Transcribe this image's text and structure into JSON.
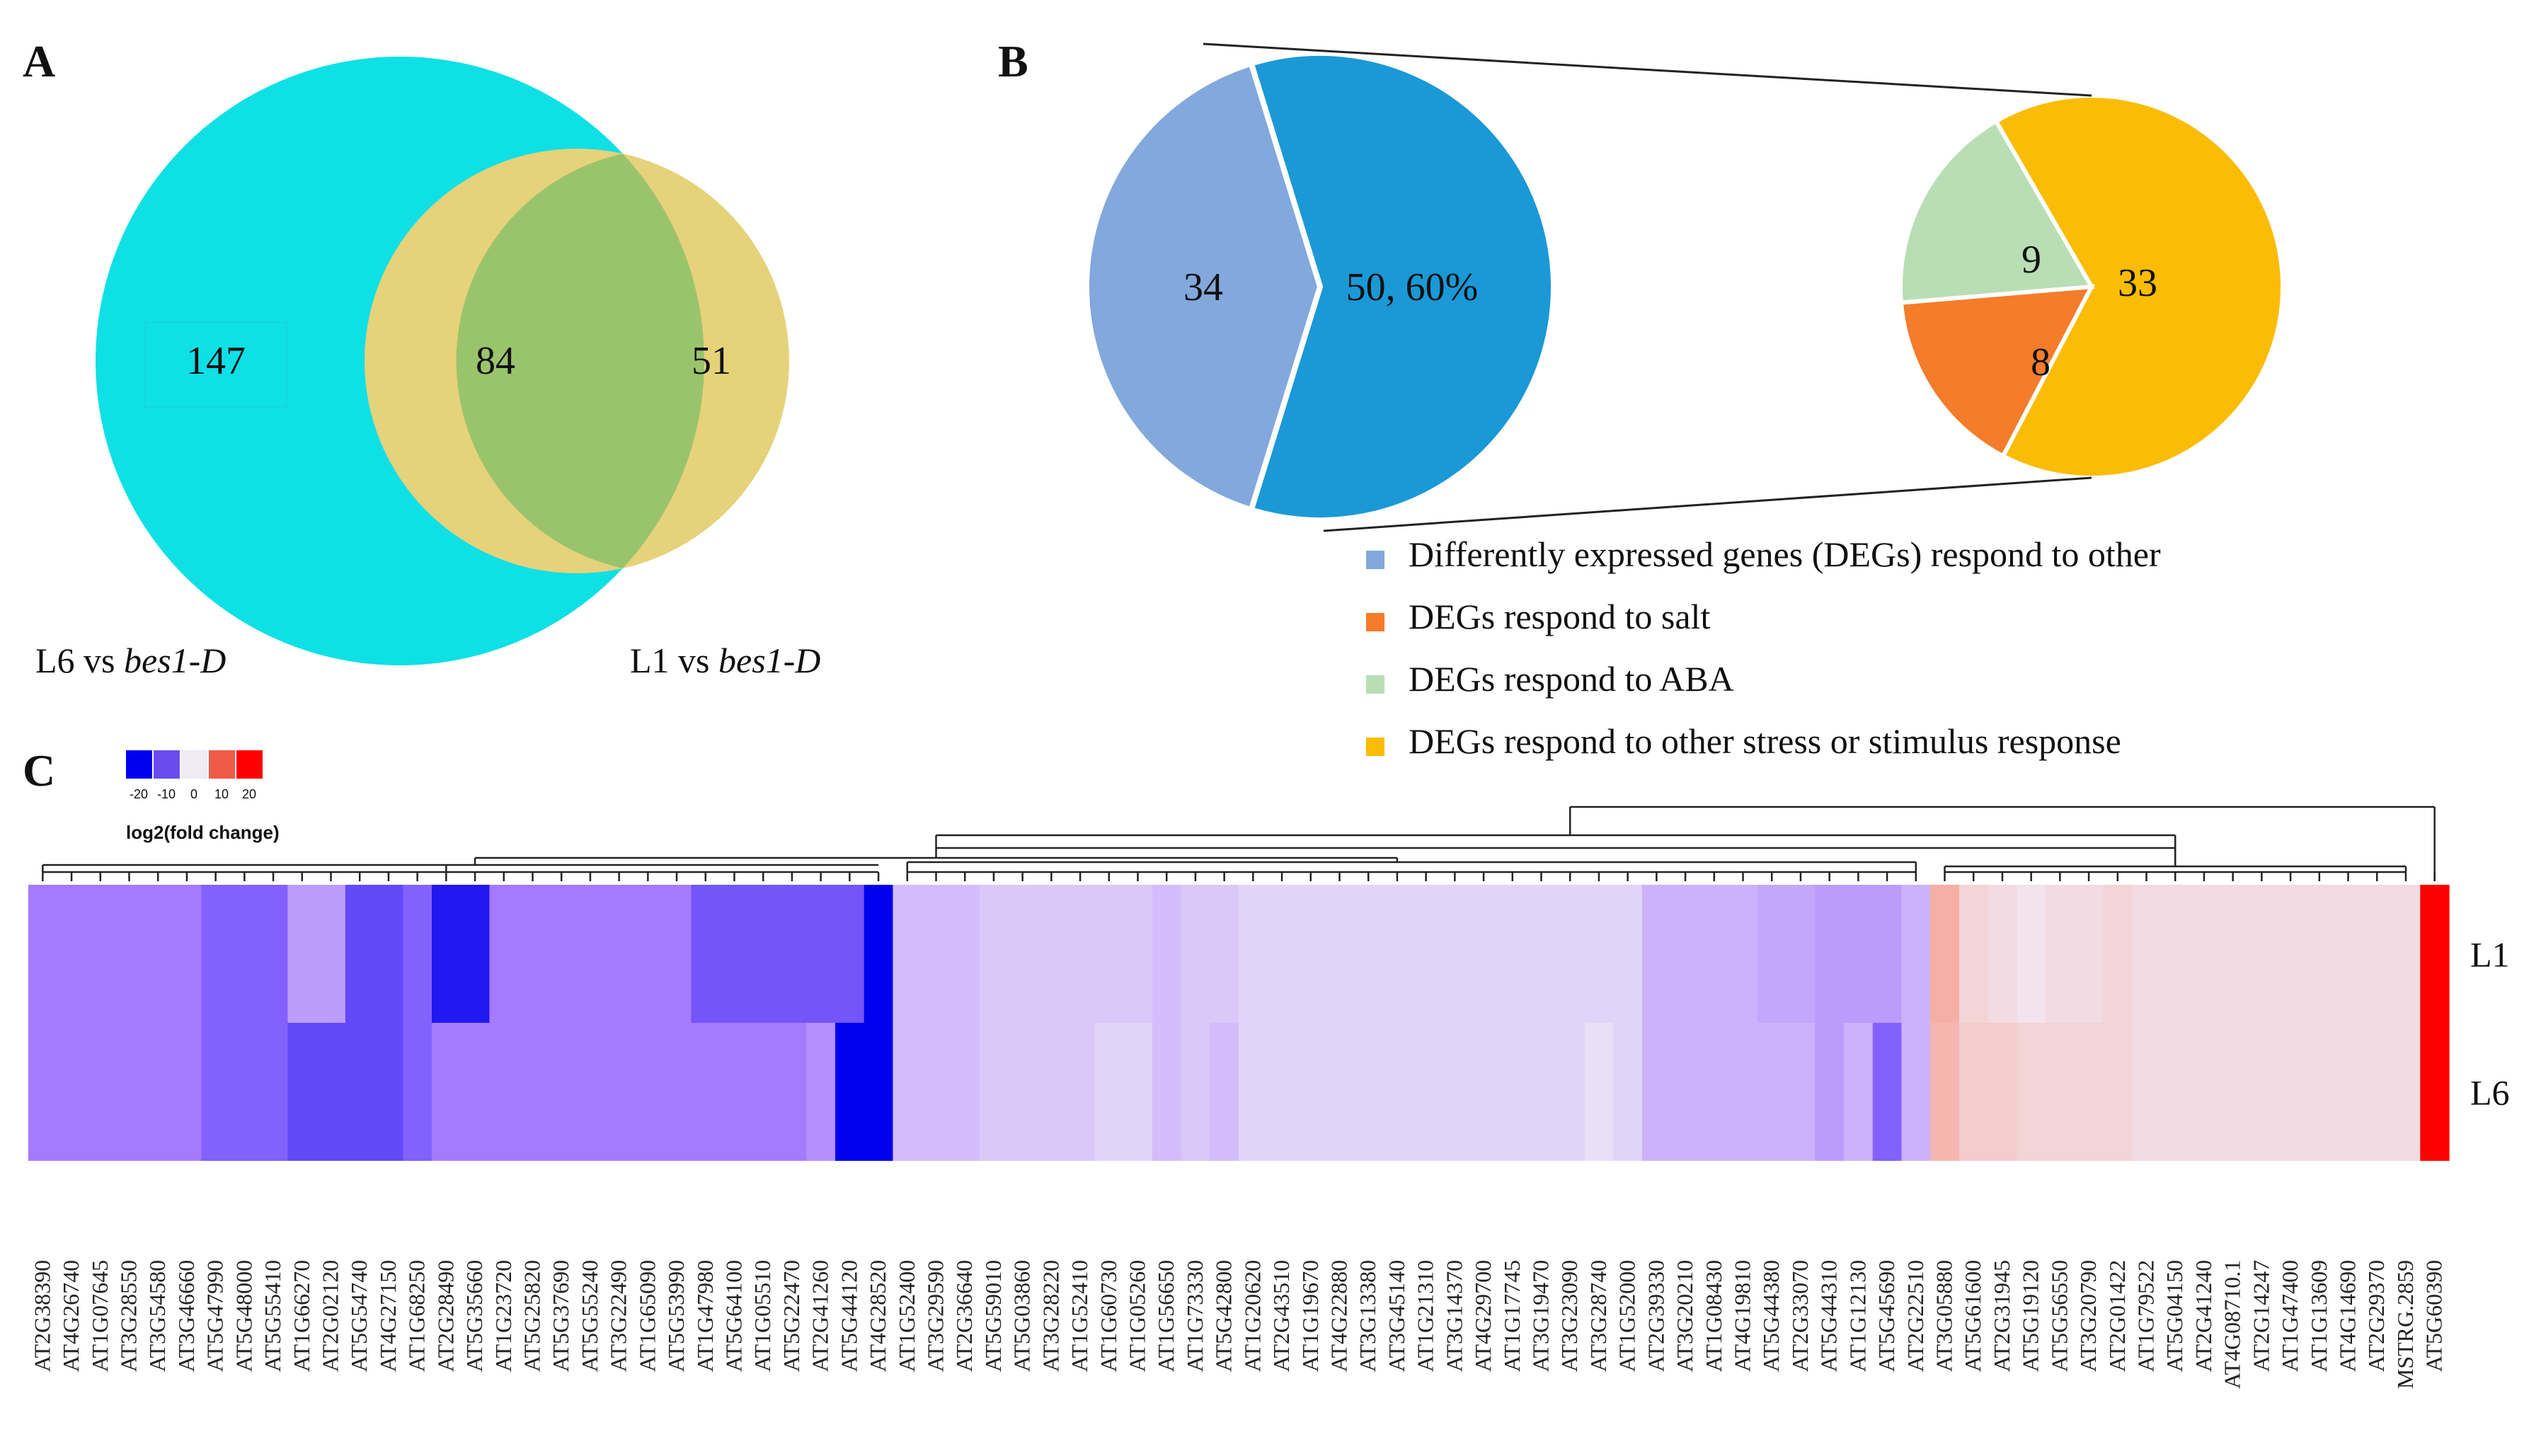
{
  "chart_data": [
    {
      "panel": "A",
      "type": "venn",
      "sets": [
        {
          "name": "L6 vs bes1-D",
          "label_plain": "L6 vs ",
          "label_italic": "bes1-D",
          "unique": 147,
          "color": "#0ee0e6"
        },
        {
          "name": "L1 vs bes1-D",
          "label_plain": "L1 vs ",
          "label_italic": "bes1-D",
          "unique": 51,
          "color": "#e6d27a"
        }
      ],
      "intersection": 84,
      "intersection_color": "#9ac46c"
    },
    {
      "panel": "B",
      "type": "pie",
      "main_pie": {
        "slices": [
          {
            "label": "34",
            "value": 34,
            "color": "#82a8dc"
          },
          {
            "label": "50, 60%",
            "value": 50,
            "color": "#1b98d6"
          }
        ]
      },
      "sub_pie": {
        "slices": [
          {
            "label": "33",
            "value": 33,
            "color": "#fbbc05"
          },
          {
            "label": "8",
            "value": 8,
            "color": "#f47c2a"
          },
          {
            "label": "9",
            "value": 9,
            "color": "#b9deb5"
          }
        ]
      },
      "legend": [
        {
          "label": "Differently expressed genes (DEGs) respond to other",
          "color": "#82a8dc"
        },
        {
          "label": "DEGs respond to salt",
          "color": "#f47c2a"
        },
        {
          "label": "DEGs respond to ABA",
          "color": "#b9deb5"
        },
        {
          "label": "DEGs respond to other stress or stimulus response",
          "color": "#fbbc05"
        }
      ]
    },
    {
      "panel": "C",
      "type": "heatmap",
      "scale": {
        "ticks": [
          "-20",
          "-10",
          "0",
          "10",
          "20"
        ],
        "title": "log2(fold change)",
        "colors": [
          "#0000ee",
          "#6a4cee",
          "#efeaf4",
          "#f25a48",
          "#ff0000"
        ]
      },
      "rows": [
        "L1",
        "L6"
      ],
      "genes": [
        "AT2G38390",
        "AT4G26740",
        "AT1G07645",
        "AT3G28550",
        "AT3G54580",
        "AT3G46660",
        "AT5G47990",
        "AT5G48000",
        "AT5G55410",
        "AT1G66270",
        "AT2G02120",
        "AT5G54740",
        "AT4G27150",
        "AT1G68250",
        "AT2G28490",
        "AT5G35660",
        "AT1G23720",
        "AT5G25820",
        "AT5G37690",
        "AT5G55240",
        "AT3G22490",
        "AT1G65090",
        "AT5G53990",
        "AT1G47980",
        "AT5G64100",
        "AT1G05510",
        "AT5G22470",
        "AT2G41260",
        "AT5G44120",
        "AT4G28520",
        "AT1G52400",
        "AT3G29590",
        "AT2G36640",
        "AT5G59010",
        "AT5G03860",
        "AT3G28220",
        "AT1G52410",
        "AT1G60730",
        "AT1G05260",
        "AT1G56650",
        "AT1G73330",
        "AT5G42800",
        "AT1G20620",
        "AT2G43510",
        "AT1G19670",
        "AT4G22880",
        "AT3G13380",
        "AT3G45140",
        "AT1G21310",
        "AT3G14370",
        "AT4G29700",
        "AT1G17745",
        "AT3G19470",
        "AT3G23090",
        "AT3G28740",
        "AT1G52000",
        "AT2G39330",
        "AT3G20210",
        "AT1G08430",
        "AT4G19810",
        "AT5G44380",
        "AT2G33070",
        "AT5G44310",
        "AT1G12130",
        "AT5G45690",
        "AT2G22510",
        "AT3G05880",
        "AT5G61600",
        "AT2G31945",
        "AT5G19120",
        "AT5G56550",
        "AT3G20790",
        "AT2G01422",
        "AT1G79522",
        "AT5G04150",
        "AT2G41240",
        "AT4G08710.1",
        "AT2G14247",
        "AT1G47400",
        "AT1G13609",
        "AT4G14690",
        "AT2G29370",
        "MSTRG.2859",
        "AT5G60390"
      ],
      "values": {
        "L1": [
          -10,
          -10,
          -10,
          -10,
          -10,
          -10,
          -12,
          -12,
          -12,
          -7,
          -7,
          -14,
          -14,
          -12,
          -18,
          -18,
          -10,
          -10,
          -10,
          -10,
          -10,
          -10,
          -10,
          -13,
          -13,
          -13,
          -13,
          -13,
          -13,
          -20,
          -4,
          -4,
          -4,
          -3,
          -3,
          -3,
          -3,
          -3,
          -3,
          -4,
          -3,
          -3,
          -2,
          -2,
          -2,
          -2,
          -2,
          -2,
          -2,
          -2,
          -2,
          -2,
          -2,
          -2,
          -2,
          -2,
          -5,
          -5,
          -5,
          -5,
          -6,
          -6,
          -7,
          -7,
          -7,
          -5,
          8,
          3,
          2,
          1,
          2,
          2,
          3,
          2,
          2,
          2,
          2,
          2,
          2,
          2,
          2,
          2,
          2,
          20
        ],
        "L6": [
          -10,
          -10,
          -10,
          -10,
          -10,
          -10,
          -12,
          -12,
          -12,
          -14,
          -14,
          -14,
          -14,
          -12,
          -10,
          -10,
          -10,
          -10,
          -10,
          -10,
          -10,
          -10,
          -10,
          -10,
          -10,
          -10,
          -10,
          -8,
          -20,
          -20,
          -4,
          -4,
          -4,
          -3,
          -3,
          -3,
          -3,
          -2,
          -2,
          -4,
          -3,
          -4,
          -2,
          -2,
          -2,
          -2,
          -2,
          -2,
          -2,
          -2,
          -2,
          -2,
          -2,
          -2,
          -1,
          -2,
          -5,
          -5,
          -5,
          -5,
          -5,
          -5,
          -7,
          -5,
          -12,
          -5,
          7,
          4,
          4,
          3,
          3,
          3,
          3,
          2,
          2,
          2,
          2,
          2,
          2,
          2,
          2,
          2,
          2,
          20
        ]
      }
    }
  ],
  "labels": {
    "panel_a": "A",
    "panel_b": "B",
    "panel_c": "C"
  }
}
